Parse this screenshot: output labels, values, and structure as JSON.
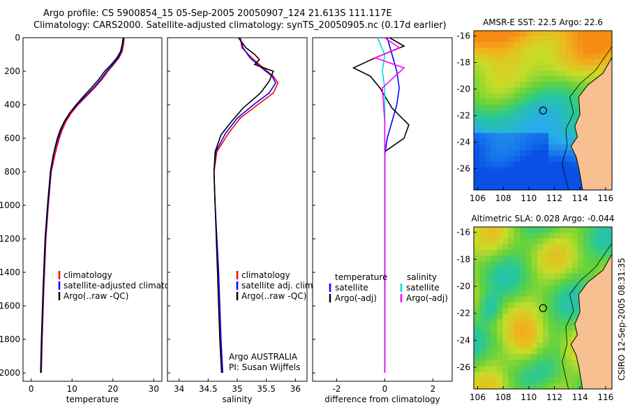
{
  "header": {
    "line1": "Argo profile: CS 5900854_15 05-Sep-2005 20050907_124 21.613S 111.117E",
    "line2": "Climatology: CARS2000. Satellite-adjusted climatology: synTS_20050905.nc (0.17d earlier)"
  },
  "side_stamp": "CSIRO 12-Sep-2005 08:31:35",
  "colors": {
    "climatology": "#ff0000",
    "satellite": "#0000ff",
    "argo": "#000000",
    "sal_satellite": "#00dddd",
    "sal_argo": "#ff00ff",
    "land": "#f7c090"
  },
  "chart_data": [
    {
      "type": "line",
      "id": "temperature",
      "xlabel": "temperature",
      "ylabel": "",
      "xlim": [
        -2,
        32
      ],
      "ylim": [
        2050,
        0
      ],
      "xticks": [
        "0",
        "10",
        "20",
        "30"
      ],
      "yticks": [
        "0",
        "200",
        "400",
        "600",
        "800",
        "1000",
        "1200",
        "1400",
        "1600",
        "1800",
        "2000"
      ],
      "legend": [
        "climatology",
        "satellite-adjusted climatology",
        "Argo(..raw -QC)"
      ],
      "series": [
        {
          "name": "climatology",
          "x": [
            22.8,
            22.6,
            22.3,
            21.5,
            20.2,
            18.8,
            17.3,
            15.5,
            13.5,
            11.5,
            9.8,
            8.5,
            7.6,
            6.9,
            6.3,
            5.8,
            4.9,
            4.2,
            3.6,
            3.1,
            2.7,
            2.5
          ],
          "y": [
            0,
            40,
            80,
            120,
            160,
            200,
            250,
            300,
            350,
            400,
            450,
            500,
            550,
            600,
            650,
            700,
            800,
            1000,
            1200,
            1500,
            1800,
            2000
          ]
        },
        {
          "name": "satellite-adjusted climatology",
          "x": [
            22.6,
            22.4,
            22.1,
            21.3,
            20.0,
            18.5,
            17.0,
            15.2,
            13.2,
            11.2,
            9.5,
            8.2,
            7.3,
            6.6,
            6.0,
            5.5,
            4.8,
            4.1,
            3.5,
            3.0,
            2.6,
            2.4
          ],
          "y": [
            0,
            40,
            80,
            120,
            160,
            200,
            250,
            300,
            350,
            400,
            450,
            500,
            550,
            600,
            650,
            700,
            800,
            1000,
            1200,
            1500,
            1800,
            2000
          ]
        },
        {
          "name": "Argo(..raw -QC)",
          "x": [
            22.5,
            22.3,
            21.9,
            21.0,
            19.6,
            18.0,
            16.5,
            14.7,
            12.8,
            11.0,
            9.4,
            8.1,
            7.1,
            6.4,
            5.9,
            5.4,
            4.7,
            4.0,
            3.4,
            2.9,
            2.5,
            2.3
          ],
          "y": [
            0,
            40,
            80,
            120,
            160,
            200,
            250,
            300,
            350,
            400,
            450,
            500,
            550,
            600,
            650,
            700,
            800,
            1000,
            1200,
            1500,
            1800,
            2000
          ]
        }
      ]
    },
    {
      "type": "line",
      "id": "salinity",
      "xlabel": "salinity",
      "xlim": [
        33.8,
        36.2
      ],
      "ylim": [
        2050,
        0
      ],
      "xticks": [
        "34",
        "34.5",
        "35",
        "35.5",
        "36"
      ],
      "legend": [
        "climatology",
        "satellite adj. clim.",
        "Argo(..raw -QC)"
      ],
      "annotation": [
        "Argo AUSTRALIA",
        "PI: Susan Wijffels"
      ],
      "series": [
        {
          "name": "climatology",
          "x": [
            35.05,
            35.08,
            35.25,
            35.45,
            35.62,
            35.7,
            35.62,
            35.35,
            35.05,
            34.85,
            34.65,
            34.6,
            34.62,
            34.68,
            34.72,
            34.75
          ],
          "y": [
            0,
            60,
            120,
            180,
            230,
            270,
            330,
            400,
            480,
            570,
            680,
            800,
            1000,
            1400,
            1800,
            2000
          ]
        },
        {
          "name": "satellite adj. clim.",
          "x": [
            35.05,
            35.1,
            35.22,
            35.42,
            35.6,
            35.66,
            35.55,
            35.28,
            35.0,
            34.8,
            34.63,
            34.6,
            34.62,
            34.68,
            34.72,
            34.75
          ],
          "y": [
            0,
            60,
            120,
            180,
            230,
            270,
            330,
            400,
            480,
            570,
            680,
            800,
            1000,
            1400,
            1800,
            2000
          ]
        },
        {
          "name": "Argo(..raw -QC)",
          "x": [
            35.02,
            35.15,
            35.3,
            35.38,
            35.3,
            35.62,
            35.55,
            35.4,
            35.1,
            34.9,
            34.72,
            34.62,
            34.6,
            34.62,
            34.66,
            34.7,
            34.73
          ],
          "y": [
            0,
            60,
            100,
            130,
            160,
            200,
            260,
            330,
            420,
            500,
            580,
            680,
            800,
            1000,
            1400,
            1800,
            2000
          ]
        }
      ]
    },
    {
      "type": "line",
      "id": "difference",
      "xlabel": "difference from climatology",
      "xlim": [
        -3,
        2.8
      ],
      "ylim": [
        2050,
        0
      ],
      "xticks": [
        "-2",
        "0",
        "2"
      ],
      "legend_temperature": [
        "temperature",
        "satellite",
        "Argo(-adj)"
      ],
      "legend_salinity": [
        "salinity",
        "satellite",
        "Argo(-adj)"
      ],
      "series": [
        {
          "name": "temperature satellite",
          "x": [
            0.1,
            0.3,
            0.5,
            0.6,
            0.5,
            0.3,
            0.1,
            0.0,
            0.0,
            0.0,
            0.0
          ],
          "y": [
            0,
            100,
            200,
            300,
            400,
            500,
            600,
            700,
            1000,
            1500,
            2000
          ]
        },
        {
          "name": "temperature Argo(-adj)",
          "x": [
            0.2,
            0.8,
            -0.4,
            -1.3,
            -0.6,
            -0.2,
            0.3,
            1.0,
            0.8,
            0.0,
            0.0,
            0.0,
            0.0
          ],
          "y": [
            0,
            50,
            120,
            180,
            230,
            300,
            420,
            520,
            600,
            680,
            800,
            1400,
            2000
          ]
        },
        {
          "name": "salinity satellite",
          "x": [
            -0.3,
            0.0,
            -0.1,
            0.0,
            0.0,
            0.0
          ],
          "y": [
            0,
            100,
            200,
            300,
            700,
            2000
          ]
        },
        {
          "name": "salinity Argo(-adj)",
          "x": [
            0.0,
            0.6,
            -0.4,
            0.8,
            -0.1,
            0.0,
            0.0
          ],
          "y": [
            0,
            60,
            120,
            180,
            300,
            500,
            2000
          ]
        }
      ]
    },
    {
      "type": "heatmap",
      "id": "sst_map",
      "title": "AMSR-E SST: 22.5 Argo: 22.6",
      "xlim": [
        105.7,
        116.5
      ],
      "ylim": [
        -27.6,
        -15.6
      ],
      "xticks": [
        "106",
        "108",
        "110",
        "112",
        "114",
        "116"
      ],
      "yticks": [
        "-16",
        "-18",
        "-20",
        "-22",
        "-24",
        "-26"
      ],
      "marker": [
        111.117,
        -21.613
      ]
    },
    {
      "type": "heatmap",
      "id": "sla_map",
      "title": "Altimetric SLA: 0.028 Argo: -0.044",
      "xlim": [
        105.7,
        116.5
      ],
      "ylim": [
        -27.6,
        -15.6
      ],
      "xticks": [
        "106",
        "108",
        "110",
        "112",
        "114",
        "116"
      ],
      "yticks": [
        "-16",
        "-18",
        "-20",
        "-22",
        "-24",
        "-26"
      ],
      "marker": [
        111.117,
        -21.613
      ]
    }
  ]
}
